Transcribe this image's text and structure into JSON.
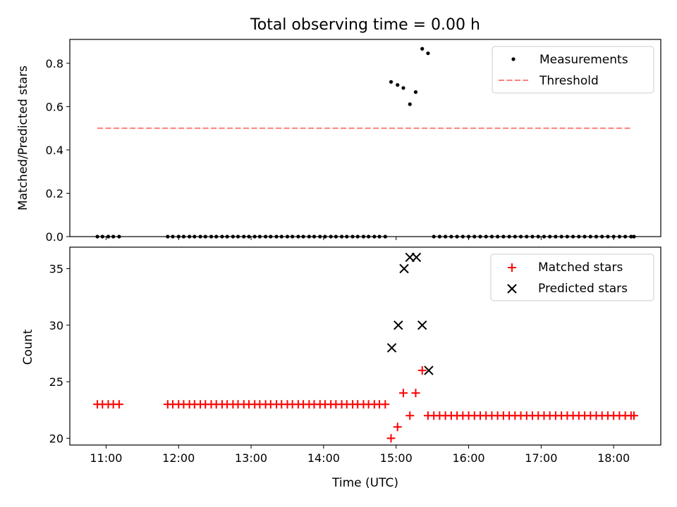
{
  "figure": {
    "title": "Total observing time = 0.00 h"
  },
  "chart_data": [
    {
      "type": "scatter",
      "ylabel": "Matched/Predicted stars",
      "xlim": [
        10.5,
        18.65
      ],
      "ylim": [
        0.0,
        0.91
      ],
      "yticks": [
        0.0,
        0.2,
        0.4,
        0.6,
        0.8
      ],
      "ytick_labels": [
        "0.0",
        "0.2",
        "0.4",
        "0.6",
        "0.8"
      ],
      "legend_position": "top-right",
      "series": [
        {
          "name": "Measurements",
          "marker": "dot",
          "color": "#000000",
          "x": [
            10.88,
            10.95,
            11.03,
            11.1,
            11.18,
            11.85,
            11.92,
            12.0,
            12.07,
            12.15,
            12.22,
            12.3,
            12.37,
            12.45,
            12.52,
            12.6,
            12.67,
            12.75,
            12.82,
            12.9,
            12.97,
            13.05,
            13.12,
            13.2,
            13.27,
            13.35,
            13.42,
            13.5,
            13.57,
            13.65,
            13.72,
            13.8,
            13.87,
            13.95,
            14.02,
            14.1,
            14.17,
            14.25,
            14.32,
            14.4,
            14.47,
            14.55,
            14.62,
            14.7,
            14.77,
            14.85,
            14.93,
            15.02,
            15.1,
            15.19,
            15.27,
            15.36,
            15.44,
            15.52,
            15.6,
            15.68,
            15.76,
            15.84,
            15.92,
            16.0,
            16.08,
            16.16,
            16.24,
            16.32,
            16.4,
            16.48,
            16.56,
            16.64,
            16.72,
            16.8,
            16.88,
            16.96,
            17.04,
            17.12,
            17.2,
            17.28,
            17.36,
            17.44,
            17.52,
            17.6,
            17.68,
            17.76,
            17.84,
            17.92,
            18.0,
            18.08,
            18.16,
            18.24,
            18.28
          ],
          "y": [
            0,
            0,
            0,
            0,
            0,
            0,
            0,
            0,
            0,
            0,
            0,
            0,
            0,
            0,
            0,
            0,
            0,
            0,
            0,
            0,
            0,
            0,
            0,
            0,
            0,
            0,
            0,
            0,
            0,
            0,
            0,
            0,
            0,
            0,
            0,
            0,
            0,
            0,
            0,
            0,
            0,
            0,
            0,
            0,
            0,
            0,
            0.714,
            0.7,
            0.686,
            0.611,
            0.667,
            0.867,
            0.846,
            0,
            0,
            0,
            0,
            0,
            0,
            0,
            0,
            0,
            0,
            0,
            0,
            0,
            0,
            0,
            0,
            0,
            0,
            0,
            0,
            0,
            0,
            0,
            0,
            0,
            0,
            0,
            0,
            0,
            0,
            0,
            0,
            0,
            0,
            0,
            0
          ]
        },
        {
          "name": "Threshold",
          "marker": "dashed-line",
          "color": "#ff7f7f",
          "x": [
            10.88,
            18.24
          ],
          "y": [
            0.5,
            0.5
          ]
        }
      ]
    },
    {
      "type": "scatter",
      "xlabel": "Time (UTC)",
      "ylabel": "Count",
      "xlim": [
        10.5,
        18.65
      ],
      "ylim": [
        19.4,
        36.9
      ],
      "xticks": [
        11,
        12,
        13,
        14,
        15,
        16,
        17,
        18
      ],
      "xtick_labels": [
        "11:00",
        "12:00",
        "13:00",
        "14:00",
        "15:00",
        "16:00",
        "17:00",
        "18:00"
      ],
      "yticks": [
        20,
        25,
        30,
        35
      ],
      "ytick_labels": [
        "20",
        "25",
        "30",
        "35"
      ],
      "legend_position": "top-right",
      "series": [
        {
          "name": "Matched stars",
          "marker": "plus",
          "color": "#ff0000",
          "x": [
            10.88,
            10.95,
            11.03,
            11.1,
            11.18,
            11.85,
            11.92,
            12.0,
            12.07,
            12.15,
            12.22,
            12.3,
            12.37,
            12.45,
            12.52,
            12.6,
            12.67,
            12.75,
            12.82,
            12.9,
            12.97,
            13.05,
            13.12,
            13.2,
            13.27,
            13.35,
            13.42,
            13.5,
            13.57,
            13.65,
            13.72,
            13.8,
            13.87,
            13.95,
            14.02,
            14.1,
            14.17,
            14.25,
            14.32,
            14.4,
            14.47,
            14.55,
            14.62,
            14.7,
            14.77,
            14.85,
            14.93,
            15.02,
            15.1,
            15.19,
            15.27,
            15.36,
            15.44,
            15.52,
            15.6,
            15.68,
            15.76,
            15.84,
            15.92,
            16.0,
            16.08,
            16.16,
            16.24,
            16.32,
            16.4,
            16.48,
            16.56,
            16.64,
            16.72,
            16.8,
            16.88,
            16.96,
            17.04,
            17.12,
            17.2,
            17.28,
            17.36,
            17.44,
            17.52,
            17.6,
            17.68,
            17.76,
            17.84,
            17.92,
            18.0,
            18.08,
            18.16,
            18.24,
            18.28
          ],
          "y": [
            23,
            23,
            23,
            23,
            23,
            23,
            23,
            23,
            23,
            23,
            23,
            23,
            23,
            23,
            23,
            23,
            23,
            23,
            23,
            23,
            23,
            23,
            23,
            23,
            23,
            23,
            23,
            23,
            23,
            23,
            23,
            23,
            23,
            23,
            23,
            23,
            23,
            23,
            23,
            23,
            23,
            23,
            23,
            23,
            23,
            23,
            20,
            21,
            24,
            22,
            24,
            26,
            22,
            22,
            22,
            22,
            22,
            22,
            22,
            22,
            22,
            22,
            22,
            22,
            22,
            22,
            22,
            22,
            22,
            22,
            22,
            22,
            22,
            22,
            22,
            22,
            22,
            22,
            22,
            22,
            22,
            22,
            22,
            22,
            22,
            22,
            22,
            22,
            22
          ]
        },
        {
          "name": "Predicted stars",
          "marker": "x",
          "color": "#000000",
          "x": [
            14.94,
            15.03,
            15.11,
            15.19,
            15.28,
            15.36,
            15.45
          ],
          "y": [
            28,
            30,
            35,
            36,
            36,
            30,
            26
          ]
        }
      ]
    }
  ]
}
